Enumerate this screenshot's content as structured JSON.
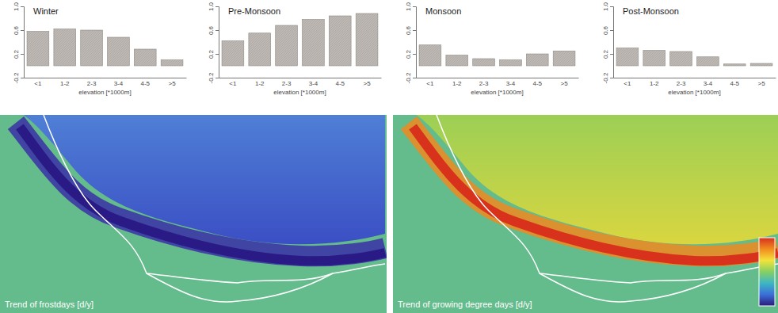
{
  "chart_data": [
    {
      "type": "bar",
      "title": "Winter",
      "xlabel": "elevation [*1000m]",
      "categories": [
        "<1",
        "1-2",
        "2-3",
        "3-4",
        "4-5",
        ">5"
      ],
      "values": [
        0.58,
        0.62,
        0.6,
        0.48,
        0.28,
        0.1
      ],
      "color": "#bdb8b3",
      "ylim": [
        -0.2,
        1.0
      ],
      "yticks": [
        -0.2,
        0.2,
        0.6,
        {
          "value": 1,
          "label": "1.0"
        }
      ]
    },
    {
      "type": "bar",
      "title": "Pre-Monsoon",
      "xlabel": "elevation [*1000m]",
      "categories": [
        "<1",
        "1-2",
        "2-3",
        "3-4",
        "4-5",
        ">5"
      ],
      "values": [
        0.42,
        0.55,
        0.68,
        0.78,
        0.84,
        0.88
      ],
      "color": "#bdb8b3",
      "ylim": [
        -0.2,
        1.0
      ],
      "yticks": [
        -0.2,
        0.2,
        0.6,
        {
          "value": 1,
          "label": "1.0"
        }
      ]
    },
    {
      "type": "bar",
      "title": "Monsoon",
      "xlabel": "elevation [*1000m]",
      "categories": [
        "<1",
        "1-2",
        "2-3",
        "3-4",
        "4-5",
        ">5"
      ],
      "values": [
        0.35,
        0.18,
        0.12,
        0.1,
        0.2,
        0.25
      ],
      "color": "#bdb8b3",
      "ylim": [
        -0.2,
        1.0
      ],
      "yticks": [
        -0.2,
        0.2,
        0.6,
        {
          "value": 1,
          "label": "1.0"
        }
      ]
    },
    {
      "type": "bar",
      "title": "Post-Monsoon",
      "xlabel": "elevation [*1000m]",
      "categories": [
        "<1",
        "1-2",
        "2-3",
        "3-4",
        "4-5",
        ">5"
      ],
      "values": [
        0.3,
        0.26,
        0.24,
        0.15,
        0.03,
        0.04
      ],
      "color": "#bdb8b3",
      "ylim": [
        -0.2,
        1.0
      ],
      "yticks": [
        -0.2,
        0.2,
        0.6,
        {
          "value": 1,
          "label": "1.0"
        }
      ]
    }
  ],
  "maps": [
    {
      "caption": "Trend of frostdays [d/y]"
    },
    {
      "caption": "Trend of growing degree days [d/y]"
    }
  ]
}
